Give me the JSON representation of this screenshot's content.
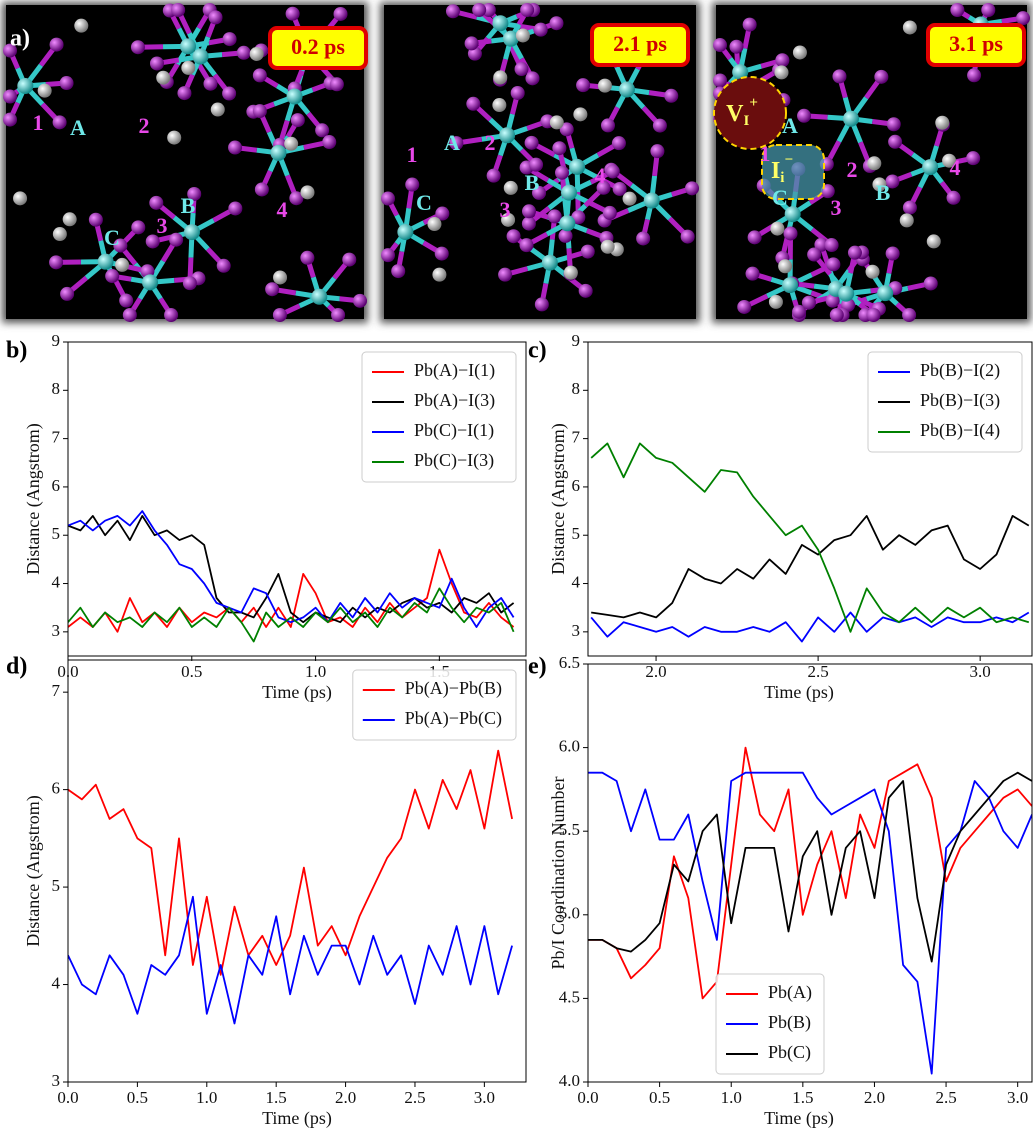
{
  "figure_a": {
    "label": "a)",
    "snapshots": [
      {
        "time": "0.2 ps",
        "atoms": [
          "A",
          "B",
          "C"
        ],
        "iodides": [
          "1",
          "2",
          "3",
          "4"
        ]
      },
      {
        "time": "2.1 ps",
        "atoms": [
          "A",
          "B",
          "C"
        ],
        "iodides": [
          "1",
          "2",
          "3",
          "4"
        ]
      },
      {
        "time": "3.1 ps",
        "atoms": [
          "A",
          "B",
          "C"
        ],
        "iodides": [
          "1",
          "2",
          "3",
          "4"
        ],
        "defects": [
          {
            "symbol": "V",
            "sub": "I",
            "sup": "+"
          },
          {
            "symbol": "I",
            "sub": "i",
            "sup": "−"
          }
        ]
      }
    ]
  },
  "chart_data": [
    {
      "type": "line",
      "panel_label": "b)",
      "xlabel": "Time (ps)",
      "ylabel": "Distance (Angstrom)",
      "legend": "upper right",
      "x": [
        0,
        0.05,
        0.1,
        0.15,
        0.2,
        0.25,
        0.3,
        0.35,
        0.4,
        0.45,
        0.5,
        0.55,
        0.6,
        0.65,
        0.7,
        0.75,
        0.8,
        0.85,
        0.9,
        0.95,
        1.0,
        1.05,
        1.1,
        1.15,
        1.2,
        1.25,
        1.3,
        1.35,
        1.4,
        1.45,
        1.5,
        1.55,
        1.6,
        1.65,
        1.7,
        1.75,
        1.8
      ],
      "xlim": [
        0,
        1.85
      ],
      "ylim": [
        2.5,
        9
      ],
      "xticks": [
        {
          "value": 0,
          "label": "0.0"
        },
        0.5,
        {
          "value": 1,
          "label": "1.0"
        },
        1.5
      ],
      "yticks": [
        3,
        4,
        5,
        6,
        7,
        8,
        9
      ],
      "series": [
        {
          "name": "Pb(A)−I(1)",
          "color": "#ff0000",
          "values": [
            3.1,
            3.3,
            3.1,
            3.4,
            3.0,
            3.7,
            3.2,
            3.4,
            3.1,
            3.5,
            3.2,
            3.4,
            3.3,
            3.5,
            3.2,
            3.5,
            3.1,
            3.5,
            3.1,
            4.2,
            3.8,
            3.2,
            3.3,
            3.1,
            3.5,
            3.2,
            3.6,
            3.3,
            3.5,
            3.7,
            4.7,
            4.0,
            3.4,
            3.3,
            3.6,
            3.3,
            3.1
          ]
        },
        {
          "name": "Pb(A)−I(3)",
          "color": "#000000",
          "values": [
            5.2,
            5.1,
            5.4,
            5.0,
            5.3,
            4.9,
            5.4,
            5.0,
            5.1,
            4.9,
            5.0,
            4.8,
            3.7,
            3.4,
            3.4,
            3.3,
            3.7,
            4.2,
            3.4,
            3.2,
            3.4,
            3.3,
            3.2,
            3.5,
            3.3,
            3.5,
            3.4,
            3.6,
            3.7,
            3.5,
            3.6,
            3.4,
            3.7,
            3.6,
            3.8,
            3.4,
            3.6
          ]
        },
        {
          "name": "Pb(C)−I(1)",
          "color": "#0000ff",
          "values": [
            5.2,
            5.3,
            5.1,
            5.3,
            5.4,
            5.2,
            5.5,
            5.1,
            4.8,
            4.4,
            4.3,
            4.0,
            3.6,
            3.5,
            3.4,
            3.9,
            3.8,
            3.3,
            3.2,
            3.3,
            3.5,
            3.2,
            3.6,
            3.3,
            3.7,
            3.4,
            3.8,
            3.5,
            3.7,
            3.6,
            3.5,
            4.1,
            3.5,
            3.1,
            3.5,
            3.7,
            3.3
          ]
        },
        {
          "name": "Pb(C)−I(3)",
          "color": "#008000",
          "values": [
            3.2,
            3.5,
            3.1,
            3.4,
            3.2,
            3.3,
            3.1,
            3.4,
            3.2,
            3.5,
            3.1,
            3.3,
            3.1,
            3.5,
            3.2,
            2.8,
            3.4,
            3.1,
            3.3,
            3.1,
            3.4,
            3.2,
            3.5,
            3.2,
            3.4,
            3.1,
            3.5,
            3.3,
            3.6,
            3.4,
            3.9,
            3.5,
            3.2,
            3.5,
            3.4,
            3.6,
            3.0
          ]
        }
      ]
    },
    {
      "type": "line",
      "panel_label": "c)",
      "xlabel": "Time (ps)",
      "ylabel": "Distance (Angstrom)",
      "legend": "upper right",
      "x": [
        1.8,
        1.85,
        1.9,
        1.95,
        2.0,
        2.05,
        2.1,
        2.15,
        2.2,
        2.25,
        2.3,
        2.35,
        2.4,
        2.45,
        2.5,
        2.55,
        2.6,
        2.65,
        2.7,
        2.75,
        2.8,
        2.85,
        2.9,
        2.95,
        3.0,
        3.05,
        3.1,
        3.15
      ],
      "xlim": [
        1.79,
        3.16
      ],
      "ylim": [
        2.5,
        9
      ],
      "xticks": [
        {
          "value": 2,
          "label": "2.0"
        },
        2.5,
        {
          "value": 3,
          "label": "3.0"
        }
      ],
      "yticks": [
        3,
        4,
        5,
        6,
        7,
        8,
        9
      ],
      "series": [
        {
          "name": "Pb(B)−I(2)",
          "color": "#0000ff",
          "values": [
            3.3,
            2.9,
            3.2,
            3.1,
            3.0,
            3.1,
            2.9,
            3.1,
            3.0,
            3.0,
            3.1,
            3.0,
            3.2,
            2.8,
            3.3,
            3.0,
            3.4,
            3.0,
            3.3,
            3.2,
            3.3,
            3.1,
            3.3,
            3.2,
            3.2,
            3.3,
            3.2,
            3.4
          ]
        },
        {
          "name": "Pb(B)−I(3)",
          "color": "#000000",
          "values": [
            3.4,
            3.35,
            3.3,
            3.4,
            3.3,
            3.6,
            4.3,
            4.1,
            4.0,
            4.3,
            4.1,
            4.5,
            4.2,
            4.8,
            4.6,
            4.9,
            5.0,
            5.4,
            4.7,
            5.0,
            4.8,
            5.1,
            5.2,
            4.5,
            4.3,
            4.6,
            5.4,
            5.2
          ]
        },
        {
          "name": "Pb(B)−I(4)",
          "color": "#008000",
          "values": [
            6.6,
            6.9,
            6.2,
            6.9,
            6.6,
            6.5,
            6.2,
            5.9,
            6.35,
            6.3,
            5.8,
            5.4,
            5.0,
            5.2,
            4.7,
            3.9,
            3.0,
            3.9,
            3.4,
            3.2,
            3.5,
            3.2,
            3.5,
            3.3,
            3.5,
            3.2,
            3.3,
            3.2
          ]
        }
      ]
    },
    {
      "type": "line",
      "panel_label": "d)",
      "xlabel": "Time (ps)",
      "ylabel": "Distance (Angstrom)",
      "legend": "upper right",
      "x": [
        0,
        0.1,
        0.2,
        0.3,
        0.4,
        0.5,
        0.6,
        0.7,
        0.8,
        0.9,
        1.0,
        1.1,
        1.2,
        1.3,
        1.4,
        1.5,
        1.6,
        1.7,
        1.8,
        1.9,
        2.0,
        2.1,
        2.2,
        2.3,
        2.4,
        2.5,
        2.6,
        2.7,
        2.8,
        2.9,
        3.0,
        3.1,
        3.2
      ],
      "xlim": [
        0,
        3.3
      ],
      "ylim": [
        3,
        7.33
      ],
      "xticks": [
        {
          "value": 0,
          "label": "0.0"
        },
        0.5,
        {
          "value": 1,
          "label": "1.0"
        },
        1.5,
        {
          "value": 2,
          "label": "2.0"
        },
        2.5,
        {
          "value": 3,
          "label": "3.0"
        }
      ],
      "yticks": [
        3,
        4,
        5,
        6,
        7
      ],
      "series": [
        {
          "name": "Pb(A)−Pb(B)",
          "color": "#ff0000",
          "values": [
            6.0,
            5.9,
            6.05,
            5.7,
            5.8,
            5.5,
            5.4,
            4.3,
            5.5,
            4.2,
            4.9,
            4.1,
            4.8,
            4.3,
            4.5,
            4.2,
            4.5,
            5.2,
            4.4,
            4.6,
            4.3,
            4.7,
            5.0,
            5.3,
            5.5,
            6.0,
            5.6,
            6.1,
            5.8,
            6.2,
            5.6,
            6.4,
            5.7
          ]
        },
        {
          "name": "Pb(A)−Pb(C)",
          "color": "#0000ff",
          "values": [
            4.3,
            4.0,
            3.9,
            4.3,
            4.1,
            3.7,
            4.2,
            4.1,
            4.3,
            4.9,
            3.7,
            4.2,
            3.6,
            4.3,
            4.1,
            4.7,
            3.9,
            4.5,
            4.1,
            4.4,
            4.4,
            4.0,
            4.5,
            4.1,
            4.3,
            3.8,
            4.4,
            4.1,
            4.6,
            4.0,
            4.6,
            3.9,
            4.4
          ]
        }
      ]
    },
    {
      "type": "line",
      "panel_label": "e)",
      "xlabel": "Time (ps)",
      "ylabel": "Pb/I Coordination Number",
      "legend": "lower center",
      "x": [
        0,
        0.1,
        0.2,
        0.3,
        0.4,
        0.5,
        0.6,
        0.7,
        0.8,
        0.9,
        1.0,
        1.1,
        1.2,
        1.3,
        1.4,
        1.5,
        1.6,
        1.7,
        1.8,
        1.9,
        2.0,
        2.1,
        2.2,
        2.3,
        2.4,
        2.5,
        2.6,
        2.7,
        2.8,
        2.9,
        3.0,
        3.1
      ],
      "xlim": [
        0,
        3.1
      ],
      "ylim": [
        4,
        6.5
      ],
      "xticks": [
        {
          "value": 0,
          "label": "0.0"
        },
        0.5,
        {
          "value": 1,
          "label": "1.0"
        },
        1.5,
        {
          "value": 2,
          "label": "2.0"
        },
        2.5,
        {
          "value": 3,
          "label": "3.0"
        }
      ],
      "yticks": [
        {
          "value": 4,
          "label": "4.0"
        },
        4.5,
        {
          "value": 5,
          "label": "5.0"
        },
        5.5,
        {
          "value": 6,
          "label": "6.0"
        },
        6.5
      ],
      "series": [
        {
          "name": "Pb(A)",
          "color": "#ff0000",
          "values": [
            4.85,
            4.85,
            4.8,
            4.62,
            4.7,
            4.8,
            5.35,
            5.1,
            4.5,
            4.6,
            5.3,
            6.0,
            5.6,
            5.5,
            5.75,
            5.0,
            5.3,
            5.5,
            5.1,
            5.6,
            5.4,
            5.8,
            5.85,
            5.9,
            5.7,
            5.2,
            5.4,
            5.5,
            5.6,
            5.7,
            5.75,
            5.65
          ]
        },
        {
          "name": "Pb(B)",
          "color": "#0000ff",
          "values": [
            5.85,
            5.85,
            5.8,
            5.5,
            5.75,
            5.45,
            5.45,
            5.6,
            5.2,
            4.85,
            5.8,
            5.85,
            5.85,
            5.85,
            5.85,
            5.85,
            5.7,
            5.6,
            5.65,
            5.7,
            5.75,
            5.5,
            4.7,
            4.6,
            4.05,
            5.4,
            5.5,
            5.8,
            5.7,
            5.5,
            5.4,
            5.6
          ]
        },
        {
          "name": "Pb(C)",
          "color": "#000000",
          "values": [
            4.85,
            4.85,
            4.8,
            4.78,
            4.85,
            4.95,
            5.3,
            5.2,
            5.5,
            5.6,
            4.95,
            5.4,
            5.4,
            5.4,
            4.9,
            5.35,
            5.5,
            5.0,
            5.4,
            5.5,
            5.1,
            5.7,
            5.8,
            5.1,
            4.72,
            5.3,
            5.5,
            5.6,
            5.7,
            5.8,
            5.85,
            5.8
          ]
        }
      ]
    }
  ]
}
